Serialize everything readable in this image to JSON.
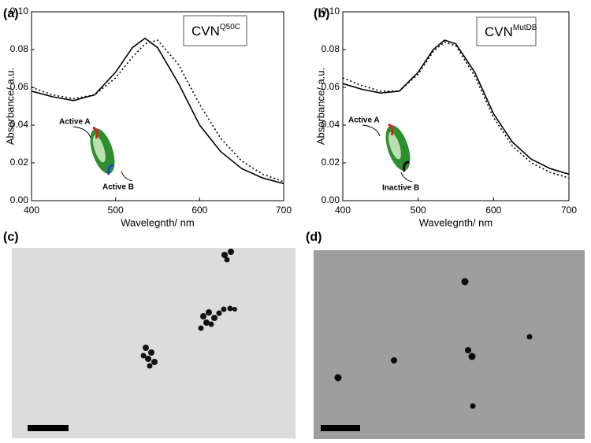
{
  "chart_data": [
    {
      "type": "line",
      "label": "(a)",
      "box_label": {
        "text": "CVN",
        "sup": "Q50C"
      },
      "y_label": "Absorbance/ a.u.",
      "x_label": "Wavelegnth/ nm",
      "xlim": [
        400,
        700
      ],
      "xticks": [
        400,
        500,
        600,
        700
      ],
      "ylim": [
        0,
        0.1
      ],
      "yticks": [
        {
          "value": 0,
          "label": "0.00"
        },
        {
          "value": 0.02,
          "label": "0.02"
        },
        {
          "value": 0.04,
          "label": "0.04"
        },
        {
          "value": 0.06,
          "label": "0.06"
        },
        {
          "value": 0.08,
          "label": "0.08"
        },
        {
          "value": 0.1,
          "label": "0.10"
        }
      ],
      "x": [
        400,
        425,
        450,
        475,
        500,
        520,
        535,
        550,
        575,
        600,
        625,
        650,
        675,
        700
      ],
      "series": [
        {
          "color": "#000000",
          "dash": "solid",
          "values": [
            0.058,
            0.055,
            0.053,
            0.056,
            0.068,
            0.081,
            0.086,
            0.081,
            0.062,
            0.04,
            0.026,
            0.017,
            0.012,
            0.009
          ]
        },
        {
          "color": "#000000",
          "dash": "dotted",
          "values": [
            0.06,
            0.056,
            0.054,
            0.056,
            0.065,
            0.076,
            0.083,
            0.085,
            0.072,
            0.051,
            0.033,
            0.021,
            0.014,
            0.01
          ]
        }
      ],
      "annotations": [
        {
          "text": "Active A",
          "color": "#e02020"
        },
        {
          "text": "Active B",
          "color": "#1f3fd6"
        }
      ]
    },
    {
      "type": "line",
      "label": "(b)",
      "box_label": {
        "text": "CVN",
        "sup": "MutDB"
      },
      "y_label": "Absorbance/ a.u.",
      "x_label": "Wavelegnth/ nm",
      "xlim": [
        400,
        700
      ],
      "xticks": [
        400,
        500,
        600,
        700
      ],
      "ylim": [
        0,
        0.1
      ],
      "yticks": [
        {
          "value": 0,
          "label": "0.00"
        },
        {
          "value": 0.02,
          "label": "0.02"
        },
        {
          "value": 0.04,
          "label": "0.04"
        },
        {
          "value": 0.06,
          "label": "0.06"
        },
        {
          "value": 0.08,
          "label": "0.08"
        },
        {
          "value": 0.1,
          "label": "0.10"
        }
      ],
      "x": [
        400,
        425,
        450,
        475,
        500,
        520,
        535,
        550,
        575,
        600,
        625,
        650,
        675,
        700
      ],
      "series": [
        {
          "color": "#000000",
          "dash": "solid",
          "values": [
            0.062,
            0.059,
            0.057,
            0.058,
            0.068,
            0.08,
            0.085,
            0.083,
            0.068,
            0.046,
            0.031,
            0.022,
            0.017,
            0.014
          ]
        },
        {
          "color": "#000000",
          "dash": "dotted",
          "values": [
            0.065,
            0.061,
            0.058,
            0.058,
            0.067,
            0.079,
            0.084,
            0.082,
            0.066,
            0.044,
            0.029,
            0.02,
            0.015,
            0.012
          ]
        }
      ],
      "annotations": [
        {
          "text": "Active A",
          "color": "#e02020"
        },
        {
          "text": "Inactive B",
          "color": "#000000"
        }
      ]
    }
  ],
  "panels": {
    "c": "(c)",
    "d": "(d)"
  }
}
